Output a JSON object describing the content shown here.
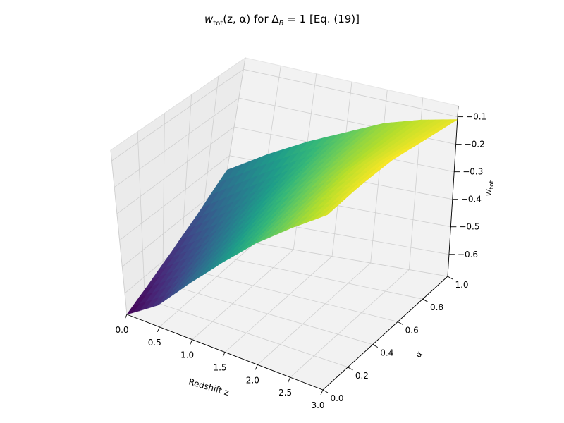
{
  "chart_data": {
    "type": "surface",
    "title": {
      "main": "w",
      "main_sub": "tot",
      "args": "(z, α) for Δ",
      "args_sub": "B",
      "rest": " = 1  [Eq. (19)]"
    },
    "xlabel": "Redshift z",
    "ylabel": "α",
    "zlabel": {
      "main": "w",
      "sub": "tot"
    },
    "xlim": [
      0,
      3
    ],
    "ylim": [
      0,
      1
    ],
    "zlim": [
      -0.68,
      -0.06
    ],
    "xticks": [
      0.0,
      0.5,
      1.0,
      1.5,
      2.0,
      2.5,
      3.0
    ],
    "xtick_labels": [
      "0.0",
      "0.5",
      "1.0",
      "1.5",
      "2.0",
      "2.5",
      "3.0"
    ],
    "yticks": [
      0.0,
      0.2,
      0.4,
      0.6,
      0.8,
      1.0
    ],
    "ytick_labels": [
      "0.0",
      "0.2",
      "0.4",
      "0.6",
      "0.8",
      "1.0"
    ],
    "zticks": [
      -0.6,
      -0.5,
      -0.4,
      -0.3,
      -0.2,
      -0.1
    ],
    "ztick_labels": [
      "−0.6",
      "−0.5",
      "−0.4",
      "−0.3",
      "−0.2",
      "−0.1"
    ],
    "colormap": "viridis",
    "grid": true,
    "surface_samples": {
      "z_values": [
        0.0,
        0.5,
        1.0,
        1.5,
        2.0,
        2.5,
        3.0
      ],
      "alpha_values": [
        0.0,
        0.25,
        0.5,
        0.75,
        1.0
      ],
      "w_tot": [
        [
          -0.68,
          -0.64,
          -0.59,
          -0.53,
          -0.45
        ],
        [
          -0.6,
          -0.55,
          -0.5,
          -0.44,
          -0.37
        ],
        [
          -0.48,
          -0.44,
          -0.39,
          -0.35,
          -0.3
        ],
        [
          -0.37,
          -0.33,
          -0.29,
          -0.26,
          -0.24
        ],
        [
          -0.27,
          -0.24,
          -0.21,
          -0.19,
          -0.18
        ],
        [
          -0.19,
          -0.16,
          -0.14,
          -0.14,
          -0.14
        ],
        [
          -0.12,
          -0.1,
          -0.09,
          -0.1,
          -0.11
        ]
      ]
    }
  }
}
